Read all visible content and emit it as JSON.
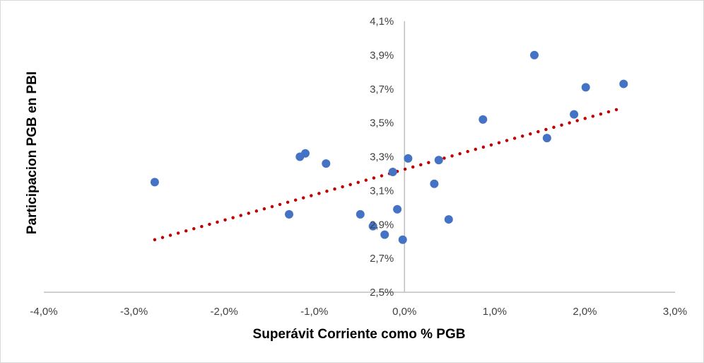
{
  "chart_data": {
    "type": "scatter",
    "title": "",
    "xlabel": "Superávit Corriente como % PGB",
    "ylabel": "Participacion PGB en PBI",
    "xlim": [
      -4.0,
      3.0
    ],
    "ylim": [
      2.5,
      4.1
    ],
    "x_ticks": [
      "-4,0%",
      "-3,0%",
      "-2,0%",
      "-1,0%",
      "0,0%",
      "1,0%",
      "2,0%",
      "3,0%"
    ],
    "y_ticks": [
      "2,5%",
      "2,7%",
      "2,9%",
      "3,1%",
      "3,3%",
      "3,5%",
      "3,7%",
      "3,9%",
      "4,1%"
    ],
    "grid": false,
    "point_color": "#4472C4",
    "trend_color": "#C00000",
    "points": [
      {
        "x": -2.77,
        "y": 3.15
      },
      {
        "x": -1.28,
        "y": 2.96
      },
      {
        "x": -1.16,
        "y": 3.3
      },
      {
        "x": -1.1,
        "y": 3.32
      },
      {
        "x": -0.87,
        "y": 3.26
      },
      {
        "x": -0.49,
        "y": 2.96
      },
      {
        "x": -0.35,
        "y": 2.89
      },
      {
        "x": -0.22,
        "y": 2.84
      },
      {
        "x": -0.13,
        "y": 3.21
      },
      {
        "x": -0.08,
        "y": 2.99
      },
      {
        "x": -0.02,
        "y": 2.81
      },
      {
        "x": 0.04,
        "y": 3.29
      },
      {
        "x": 0.33,
        "y": 3.14
      },
      {
        "x": 0.38,
        "y": 3.28
      },
      {
        "x": 0.49,
        "y": 2.93
      },
      {
        "x": 0.87,
        "y": 3.52
      },
      {
        "x": 1.44,
        "y": 3.9
      },
      {
        "x": 1.58,
        "y": 3.41
      },
      {
        "x": 1.88,
        "y": 3.55
      },
      {
        "x": 2.01,
        "y": 3.71
      },
      {
        "x": 2.43,
        "y": 3.73
      }
    ],
    "trendline": {
      "type": "linear",
      "from": {
        "x": -2.77,
        "y": 2.81
      },
      "to": {
        "x": 2.43,
        "y": 3.59
      }
    }
  }
}
